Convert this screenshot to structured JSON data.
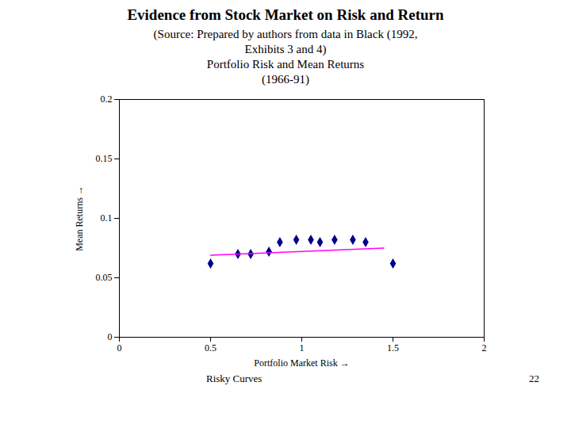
{
  "chart_data": {
    "type": "scatter",
    "title": "Evidence from Stock Market on Risk and Return",
    "subtitle": [
      "(Source: Prepared by authors from data in Black (1992,",
      "Exhibits 3 and 4)",
      "Portfolio Risk and Mean Returns",
      "(1966-91)"
    ],
    "x_label": "Portfolio Market Risk",
    "y_label": "Mean Returns",
    "series": [
      {
        "type": "scatter",
        "marker": "diamond",
        "color": "#00008B",
        "x": [
          0.5,
          0.65,
          0.72,
          0.82,
          0.88,
          0.97,
          1.05,
          1.1,
          1.18,
          1.28,
          1.35,
          1.5
        ],
        "values": [
          0.062,
          0.07,
          0.07,
          0.072,
          0.08,
          0.082,
          0.082,
          0.08,
          0.082,
          0.082,
          0.08,
          0.062
        ]
      },
      {
        "type": "line",
        "color": "#FF00FF",
        "x": [
          0.5,
          1.45
        ],
        "values": [
          0.069,
          0.075
        ]
      }
    ],
    "xlim": [
      0,
      2
    ],
    "ylim": [
      0,
      0.2
    ],
    "xticks": [
      0,
      0.5,
      1,
      1.5,
      2
    ],
    "yticks": [
      0,
      0.05,
      0.1,
      0.15,
      0.2
    ],
    "grid": false,
    "annotations": [
      "Risky Curves",
      "22"
    ]
  }
}
